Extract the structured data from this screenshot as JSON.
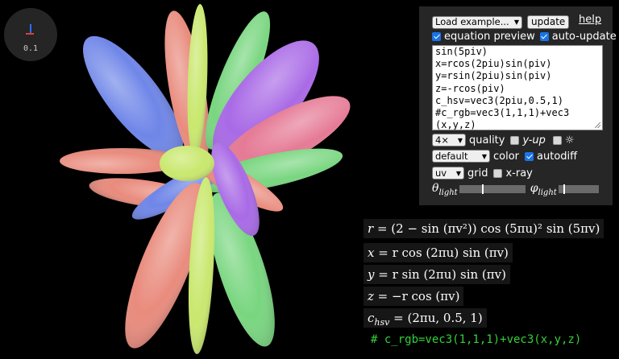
{
  "axes_widget": {
    "scale": "0.1"
  },
  "panel": {
    "example_select": "Load example...",
    "update_label": "update",
    "help_label": "help",
    "equation_preview": {
      "label": "equation preview",
      "checked": true
    },
    "auto_update": {
      "label": "auto-update",
      "checked": true
    },
    "code_lines": [
      "sin(5piv)",
      "x=rcos(2piu)sin(piv)",
      "y=rsin(2piu)sin(piv)",
      "z=-rcos(piv)",
      "c_hsv=vec3(2piu,0.5,1)",
      "#c_rgb=vec3(1,1,1)+vec3",
      "(x,y,z)"
    ],
    "quality_select": "4×",
    "quality_label": "quality",
    "y_up": {
      "label": "y-up",
      "checked": false
    },
    "sun_icon": "☼",
    "sun": {
      "checked": false
    },
    "color_select": "default",
    "color_label": "color",
    "autodiff": {
      "label": "autodiff",
      "checked": true
    },
    "grid_select": "uv",
    "grid_label": "grid",
    "xray": {
      "label": "x-ray",
      "checked": false
    },
    "theta_light": {
      "symbol": "θ",
      "sub": "light",
      "value": 0.35
    },
    "phi_light": {
      "symbol": "φ",
      "sub": "light",
      "value": 0.12
    }
  },
  "equations": {
    "r": [
      "r",
      " = ",
      "(2 − sin (πv²)) cos (5πu)² sin (5πv)"
    ],
    "x": [
      "x",
      " = ",
      "r cos (2πu) sin (πv)"
    ],
    "y": [
      "y",
      " = ",
      "r sin (2πu) sin (πv)"
    ],
    "z": [
      "z",
      " = ",
      "−r cos (πv)"
    ],
    "c": [
      "c",
      "hsv",
      " = (2πu, 0.5, 1)"
    ]
  },
  "comment_line": "# c_rgb=vec3(1,1,1)+vec3(x,y,z)",
  "petal_colors": {
    "blue": "#6f86e8",
    "salmon": "#e98b7d",
    "lime": "#c9e86e",
    "green": "#79d680",
    "violet": "#a96ae6",
    "pink": "#e57a95"
  }
}
